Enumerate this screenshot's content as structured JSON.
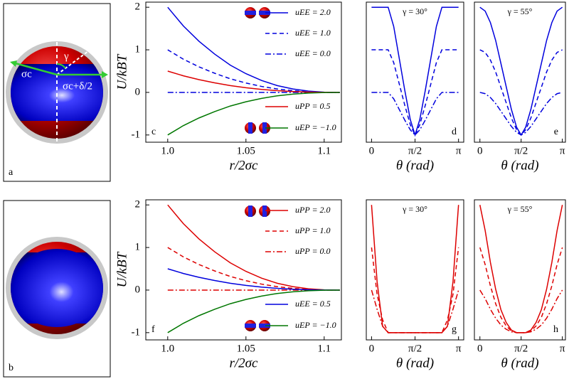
{
  "images": [
    {
      "label": "a",
      "annotations": [
        "σc",
        "γ",
        "σc+δ/2"
      ]
    },
    {
      "label": "b"
    }
  ],
  "chart_data": [
    {
      "type": "line",
      "panel_label": "c",
      "xlabel": "r/2σc",
      "ylabel": "U/kBT",
      "x": [
        1.0,
        1.01,
        1.02,
        1.03,
        1.04,
        1.05,
        1.06,
        1.07,
        1.08,
        1.09,
        1.1,
        1.11
      ],
      "xlim": [
        0.986,
        1.111
      ],
      "xticks": [
        {
          "value": 1.0,
          "label": "1.0"
        },
        1.05,
        1.1
      ],
      "ylim": [
        -1.17,
        2.12
      ],
      "yticks": [
        -1,
        0,
        1,
        2
      ],
      "series": [
        {
          "name": "uEE = 2.0",
          "color": "#0000dd",
          "dash": "solid",
          "values": [
            2,
            1.56,
            1.2,
            0.9,
            0.64,
            0.44,
            0.28,
            0.16,
            0.08,
            0.03,
            0.006,
            0
          ]
        },
        {
          "name": "uEE = 1.0",
          "color": "#0000dd",
          "dash": "dashed",
          "values": [
            1,
            0.78,
            0.6,
            0.45,
            0.32,
            0.22,
            0.14,
            0.08,
            0.04,
            0.015,
            0.003,
            0
          ]
        },
        {
          "name": "uEE = 0.0",
          "color": "#0000dd",
          "dash": "dashdot",
          "values": [
            0,
            0,
            0,
            0,
            0,
            0,
            0,
            0,
            0,
            0,
            0,
            0
          ]
        },
        {
          "name": "uPP = 0.5",
          "color": "#dd0000",
          "dash": "solid",
          "values": [
            0.5,
            0.39,
            0.3,
            0.225,
            0.16,
            0.11,
            0.07,
            0.04,
            0.02,
            0.008,
            0.002,
            0
          ]
        },
        {
          "name": "uEP = −1.0",
          "color": "#007700",
          "dash": "solid",
          "values": [
            -1,
            -0.78,
            -0.6,
            -0.45,
            -0.32,
            -0.22,
            -0.14,
            -0.08,
            -0.04,
            -0.015,
            -0.003,
            0
          ]
        }
      ]
    },
    {
      "type": "line",
      "panel_label": "d",
      "annotation": "γ = 30°",
      "xlabel": "θ (rad)",
      "x": [
        0,
        0.2,
        0.4,
        0.6,
        0.8,
        1.0,
        1.2,
        1.4,
        1.571,
        1.742,
        1.942,
        2.142,
        2.342,
        2.542,
        2.742,
        2.942,
        3.142
      ],
      "xlim": [
        -0.19,
        3.33
      ],
      "xticks": [
        0,
        {
          "value": 1.571,
          "label": "π/2"
        },
        {
          "value": 3.142,
          "label": "π"
        }
      ],
      "ylim": [
        -1.17,
        2.12
      ],
      "series": [
        {
          "color": "#0000dd",
          "dash": "solid",
          "values": [
            2,
            2,
            2,
            2,
            1.55,
            0.8,
            0.05,
            -0.64,
            -1,
            -0.64,
            0.05,
            0.8,
            1.55,
            2,
            2,
            2,
            2
          ]
        },
        {
          "color": "#0000dd",
          "dash": "dashed",
          "values": [
            1,
            1,
            1,
            1,
            0.7,
            0.2,
            -0.3,
            -0.76,
            -1,
            -0.76,
            -0.3,
            0.2,
            0.7,
            1,
            1,
            1,
            1
          ]
        },
        {
          "color": "#0000dd",
          "dash": "dashdot",
          "values": [
            0,
            0,
            0,
            0,
            -0.15,
            -0.4,
            -0.65,
            -0.88,
            -1,
            -0.88,
            -0.65,
            -0.4,
            -0.15,
            0,
            0,
            0,
            0
          ]
        }
      ]
    },
    {
      "type": "line",
      "panel_label": "e",
      "annotation": "γ = 55°",
      "xlabel": "θ (rad)",
      "x": [
        0,
        0.2,
        0.4,
        0.6,
        0.8,
        1.0,
        1.2,
        1.4,
        1.571,
        1.742,
        1.942,
        2.142,
        2.342,
        2.542,
        2.742,
        2.942,
        3.142
      ],
      "xlim": [
        -0.21,
        3.26
      ],
      "xticks": [
        0,
        {
          "value": 1.571,
          "label": "π/2"
        },
        {
          "value": 3.142,
          "label": "π"
        }
      ],
      "ylim": [
        -1.17,
        2.12
      ],
      "series": [
        {
          "color": "#0000dd",
          "dash": "solid",
          "values": [
            2,
            1.91,
            1.64,
            1.22,
            0.68,
            0.14,
            -0.4,
            -0.82,
            -1,
            -0.82,
            -0.4,
            0.14,
            0.68,
            1.22,
            1.64,
            1.91,
            2
          ]
        },
        {
          "color": "#0000dd",
          "dash": "dashed",
          "values": [
            1,
            0.94,
            0.76,
            0.48,
            0.12,
            -0.24,
            -0.6,
            -0.88,
            -1,
            -0.88,
            -0.6,
            -0.24,
            0.12,
            0.48,
            0.76,
            0.94,
            1
          ]
        },
        {
          "color": "#0000dd",
          "dash": "dashdot",
          "values": [
            0,
            -0.03,
            -0.12,
            -0.26,
            -0.44,
            -0.62,
            -0.8,
            -0.94,
            -1,
            -0.94,
            -0.8,
            -0.62,
            -0.44,
            -0.26,
            -0.12,
            -0.03,
            0
          ]
        }
      ]
    },
    {
      "type": "line",
      "panel_label": "f",
      "xlabel": "r/2σc",
      "ylabel": "U/kBT",
      "x": [
        1.0,
        1.01,
        1.02,
        1.03,
        1.04,
        1.05,
        1.06,
        1.07,
        1.08,
        1.09,
        1.1,
        1.11
      ],
      "xlim": [
        0.986,
        1.111
      ],
      "xticks": [
        {
          "value": 1.0,
          "label": "1.0"
        },
        1.05,
        1.1
      ],
      "ylim": [
        -1.17,
        2.12
      ],
      "yticks": [
        -1,
        0,
        1,
        2
      ],
      "series": [
        {
          "name": "uPP = 2.0",
          "color": "#dd0000",
          "dash": "solid",
          "values": [
            2,
            1.56,
            1.2,
            0.9,
            0.64,
            0.44,
            0.28,
            0.16,
            0.08,
            0.03,
            0.006,
            0
          ]
        },
        {
          "name": "uPP = 1.0",
          "color": "#dd0000",
          "dash": "dashed",
          "values": [
            1,
            0.78,
            0.6,
            0.45,
            0.32,
            0.22,
            0.14,
            0.08,
            0.04,
            0.015,
            0.003,
            0
          ]
        },
        {
          "name": "uPP = 0.0",
          "color": "#dd0000",
          "dash": "dashdot",
          "values": [
            0,
            0,
            0,
            0,
            0,
            0,
            0,
            0,
            0,
            0,
            0,
            0
          ]
        },
        {
          "name": "uEE = 0.5",
          "color": "#0000dd",
          "dash": "solid",
          "values": [
            0.5,
            0.39,
            0.3,
            0.225,
            0.16,
            0.11,
            0.07,
            0.04,
            0.02,
            0.008,
            0.002,
            0
          ]
        },
        {
          "name": "uEP = −1.0",
          "color": "#007700",
          "dash": "solid",
          "values": [
            -1,
            -0.78,
            -0.6,
            -0.45,
            -0.32,
            -0.22,
            -0.14,
            -0.08,
            -0.04,
            -0.015,
            -0.003,
            0
          ]
        }
      ]
    },
    {
      "type": "line",
      "panel_label": "g",
      "annotation": "γ = 30°",
      "xlabel": "θ (rad)",
      "x": [
        0,
        0.2,
        0.4,
        0.6,
        0.8,
        1.0,
        1.2,
        1.4,
        1.571,
        1.742,
        1.942,
        2.142,
        2.342,
        2.542,
        2.742,
        2.942,
        3.142
      ],
      "xlim": [
        -0.19,
        3.33
      ],
      "xticks": [
        0,
        {
          "value": 1.571,
          "label": "π/2"
        },
        {
          "value": 3.142,
          "label": "π"
        }
      ],
      "ylim": [
        -1.17,
        2.12
      ],
      "series": [
        {
          "color": "#dd0000",
          "dash": "solid",
          "values": [
            2,
            0.2,
            -0.85,
            -1,
            -1,
            -1,
            -1,
            -1,
            -1,
            -1,
            -1,
            -1,
            -1,
            -1,
            -0.85,
            0.2,
            2
          ]
        },
        {
          "color": "#dd0000",
          "dash": "dashed",
          "values": [
            1,
            -0.1,
            -0.7,
            -1,
            -1,
            -1,
            -1,
            -1,
            -1,
            -1,
            -1,
            -1,
            -1,
            -1,
            -0.7,
            -0.1,
            1
          ]
        },
        {
          "color": "#dd0000",
          "dash": "dashdot",
          "values": [
            0,
            -0.45,
            -0.85,
            -1,
            -1,
            -1,
            -1,
            -1,
            -1,
            -1,
            -1,
            -1,
            -1,
            -1,
            -0.85,
            -0.45,
            0
          ]
        }
      ]
    },
    {
      "type": "line",
      "panel_label": "h",
      "annotation": "γ = 55°",
      "xlabel": "θ (rad)",
      "x": [
        0,
        0.2,
        0.4,
        0.6,
        0.8,
        1.0,
        1.2,
        1.4,
        1.571,
        1.742,
        1.942,
        2.142,
        2.342,
        2.542,
        2.742,
        2.942,
        3.142
      ],
      "xlim": [
        -0.21,
        3.26
      ],
      "xticks": [
        0,
        {
          "value": 1.571,
          "label": "π/2"
        },
        {
          "value": 3.142,
          "label": "π"
        }
      ],
      "ylim": [
        -1.17,
        2.12
      ],
      "series": [
        {
          "color": "#dd0000",
          "dash": "solid",
          "values": [
            2,
            1.4,
            0.65,
            0.02,
            -0.46,
            -0.76,
            -0.94,
            -1,
            -1,
            -1,
            -0.94,
            -0.76,
            -0.46,
            0.02,
            0.65,
            1.4,
            2
          ]
        },
        {
          "color": "#dd0000",
          "dash": "dashed",
          "values": [
            1,
            0.6,
            0.1,
            -0.32,
            -0.64,
            -0.84,
            -0.96,
            -1,
            -1,
            -1,
            -0.96,
            -0.84,
            -0.64,
            -0.32,
            0.1,
            0.6,
            1
          ]
        },
        {
          "color": "#dd0000",
          "dash": "dashdot",
          "values": [
            0,
            -0.2,
            -0.45,
            -0.66,
            -0.82,
            -0.92,
            -0.98,
            -1,
            -1,
            -1,
            -0.98,
            -0.92,
            -0.82,
            -0.66,
            -0.45,
            -0.2,
            0
          ]
        }
      ]
    }
  ]
}
